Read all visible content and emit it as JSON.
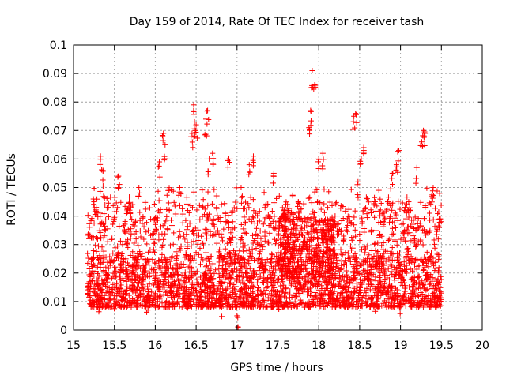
{
  "chart_data": {
    "type": "scatter",
    "title": "Day 159 of 2014, Rate Of TEC Index for receiver tash",
    "xlabel": "GPS time / hours",
    "ylabel": "ROTI / TECUs",
    "xlim": [
      15,
      20
    ],
    "ylim": [
      0,
      0.1
    ],
    "grid": true,
    "x_ticks": [
      "15",
      "15.5",
      "16",
      "16.5",
      "17",
      "17.5",
      "18",
      "18.5",
      "19",
      "19.5",
      "20"
    ],
    "y_ticks": [
      "0",
      "0.01",
      "0.02",
      "0.03",
      "0.04",
      "0.05",
      "0.06",
      "0.07",
      "0.08",
      "0.09",
      "0.1"
    ],
    "marker": "+",
    "marker_color": "#ff0000",
    "series": [
      {
        "name": "ROTI",
        "x_range": [
          15.17,
          19.5
        ],
        "typical_band": [
          0.008,
          0.05
        ],
        "x": [
          15.2,
          15.25,
          15.3,
          15.33,
          15.36,
          15.4,
          15.5,
          15.55,
          15.6,
          15.7,
          15.75,
          15.8,
          15.9,
          16.05,
          16.1,
          16.12,
          16.2,
          16.3,
          16.4,
          16.45,
          16.47,
          16.48,
          16.5,
          16.55,
          16.62,
          16.64,
          16.66,
          16.7,
          16.8,
          16.9,
          17.0,
          17.05,
          17.15,
          17.2,
          17.3,
          17.45,
          17.5,
          17.6,
          17.75,
          17.85,
          17.88,
          17.9,
          17.92,
          17.95,
          18.0,
          18.05,
          18.1,
          18.2,
          18.3,
          18.43,
          18.45,
          18.48,
          18.52,
          18.55,
          18.6,
          18.7,
          18.8,
          18.9,
          18.95,
          18.98,
          19.0,
          19.05,
          19.1,
          19.15,
          19.2,
          19.26,
          19.28,
          19.3,
          19.35,
          19.4,
          19.45,
          19.48
        ],
        "y": [
          0.012,
          0.045,
          0.01,
          0.061,
          0.056,
          0.02,
          0.012,
          0.054,
          0.03,
          0.043,
          0.015,
          0.05,
          0.012,
          0.059,
          0.069,
          0.065,
          0.015,
          0.05,
          0.012,
          0.069,
          0.079,
          0.073,
          0.072,
          0.015,
          0.074,
          0.077,
          0.06,
          0.062,
          0.01,
          0.06,
          0.005,
          0.05,
          0.058,
          0.061,
          0.03,
          0.055,
          0.012,
          0.04,
          0.045,
          0.03,
          0.071,
          0.077,
          0.091,
          0.086,
          0.06,
          0.062,
          0.02,
          0.04,
          0.015,
          0.075,
          0.076,
          0.052,
          0.06,
          0.064,
          0.02,
          0.012,
          0.04,
          0.055,
          0.058,
          0.063,
          0.01,
          0.035,
          0.045,
          0.015,
          0.057,
          0.066,
          0.07,
          0.069,
          0.04,
          0.05,
          0.012,
          0.039
        ]
      }
    ]
  }
}
